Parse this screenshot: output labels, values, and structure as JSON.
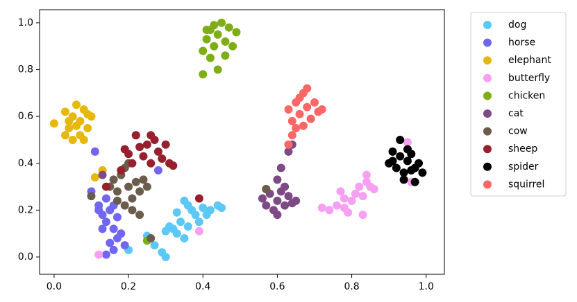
{
  "chart_data": {
    "type": "scatter",
    "xlim": [
      -0.039,
      1.049
    ],
    "ylim": [
      -0.074,
      1.056
    ],
    "xticks": [
      {
        "value": 0,
        "label": "0.0"
      },
      0.2,
      0.4,
      0.6,
      0.8,
      {
        "value": 1,
        "label": "1.0"
      }
    ],
    "yticks": [
      {
        "value": 0,
        "label": "0.0"
      },
      0.2,
      0.4,
      0.6,
      0.8,
      {
        "value": 1,
        "label": "1.0"
      }
    ],
    "legend": "outside-upper-right",
    "series": [
      {
        "name": "dog",
        "color": "#5bc8f5",
        "x": [
          0.32,
          0.33,
          0.35,
          0.3,
          0.31,
          0.34,
          0.36,
          0.37,
          0.38,
          0.4,
          0.42,
          0.44,
          0.45,
          0.33,
          0.36,
          0.25,
          0.27,
          0.29,
          0.3,
          0.2,
          0.35,
          0.39,
          0.41
        ],
        "y": [
          0.12,
          0.1,
          0.08,
          0.11,
          0.13,
          0.15,
          0.22,
          0.2,
          0.18,
          0.21,
          0.2,
          0.22,
          0.21,
          0.19,
          0.13,
          0.09,
          0.05,
          0.02,
          0.0,
          0.03,
          0.24,
          0.15,
          0.18
        ]
      },
      {
        "name": "horse",
        "color": "#7066f0",
        "x": [
          0.1,
          0.12,
          0.13,
          0.14,
          0.15,
          0.16,
          0.17,
          0.15,
          0.14,
          0.13,
          0.18,
          0.19,
          0.16,
          0.11,
          0.12,
          0.17,
          0.14,
          0.16,
          0.28
        ],
        "y": [
          0.28,
          0.22,
          0.18,
          0.15,
          0.2,
          0.12,
          0.08,
          0.06,
          0.25,
          0.12,
          0.1,
          0.05,
          0.03,
          0.45,
          0.2,
          0.17,
          0.01,
          0.22,
          0.37
        ]
      },
      {
        "name": "elephant",
        "color": "#e5b80b",
        "x": [
          0.0,
          0.03,
          0.04,
          0.05,
          0.06,
          0.07,
          0.08,
          0.09,
          0.1,
          0.05,
          0.07,
          0.08,
          0.04,
          0.06,
          0.11,
          0.13,
          0.03,
          0.09
        ],
        "y": [
          0.57,
          0.62,
          0.55,
          0.6,
          0.65,
          0.58,
          0.63,
          0.55,
          0.6,
          0.5,
          0.52,
          0.5,
          0.58,
          0.56,
          0.34,
          0.37,
          0.52,
          0.61
        ]
      },
      {
        "name": "butterfly",
        "color": "#f5a0f0",
        "x": [
          0.72,
          0.74,
          0.76,
          0.77,
          0.78,
          0.79,
          0.8,
          0.81,
          0.82,
          0.83,
          0.84,
          0.85,
          0.86,
          0.84,
          0.83,
          0.95,
          0.96,
          0.39,
          0.12,
          0.78
        ],
        "y": [
          0.21,
          0.2,
          0.22,
          0.28,
          0.25,
          0.19,
          0.24,
          0.27,
          0.3,
          0.26,
          0.32,
          0.3,
          0.29,
          0.35,
          0.18,
          0.49,
          0.32,
          0.11,
          0.01,
          0.21
        ]
      },
      {
        "name": "chicken",
        "color": "#7fad16",
        "x": [
          0.4,
          0.41,
          0.42,
          0.43,
          0.44,
          0.45,
          0.46,
          0.47,
          0.48,
          0.49,
          0.42,
          0.44,
          0.4,
          0.43,
          0.46,
          0.41,
          0.25
        ],
        "y": [
          0.88,
          0.93,
          0.97,
          0.9,
          0.95,
          1.0,
          0.92,
          0.98,
          0.9,
          0.96,
          0.85,
          0.8,
          0.78,
          0.99,
          0.86,
          0.97,
          0.07
        ]
      },
      {
        "name": "cat",
        "color": "#7d4a86",
        "x": [
          0.56,
          0.57,
          0.58,
          0.59,
          0.6,
          0.61,
          0.62,
          0.63,
          0.64,
          0.6,
          0.61,
          0.62,
          0.63,
          0.64,
          0.57,
          0.6,
          0.65,
          0.13
        ],
        "y": [
          0.25,
          0.22,
          0.27,
          0.2,
          0.24,
          0.28,
          0.22,
          0.26,
          0.23,
          0.33,
          0.38,
          0.3,
          0.45,
          0.48,
          0.29,
          0.18,
          0.24,
          0.35
        ]
      },
      {
        "name": "cow",
        "color": "#6b5c4b",
        "x": [
          0.1,
          0.15,
          0.16,
          0.17,
          0.18,
          0.19,
          0.2,
          0.21,
          0.22,
          0.23,
          0.24,
          0.25,
          0.19,
          0.21,
          0.23,
          0.17,
          0.2,
          0.22,
          0.57,
          0.26
        ],
        "y": [
          0.26,
          0.3,
          0.33,
          0.28,
          0.35,
          0.38,
          0.3,
          0.25,
          0.32,
          0.28,
          0.33,
          0.3,
          0.22,
          0.2,
          0.18,
          0.24,
          0.4,
          0.52,
          0.29,
          0.08
        ]
      },
      {
        "name": "sheep",
        "color": "#97202f",
        "x": [
          0.19,
          0.2,
          0.22,
          0.23,
          0.24,
          0.25,
          0.26,
          0.27,
          0.28,
          0.29,
          0.3,
          0.31,
          0.32,
          0.26,
          0.21,
          0.18,
          0.39,
          0.14
        ],
        "y": [
          0.46,
          0.44,
          0.52,
          0.47,
          0.43,
          0.48,
          0.4,
          0.5,
          0.45,
          0.42,
          0.48,
          0.4,
          0.39,
          0.52,
          0.4,
          0.37,
          0.25,
          0.3
        ]
      },
      {
        "name": "spider",
        "color": "#000000",
        "x": [
          0.9,
          0.91,
          0.92,
          0.93,
          0.94,
          0.95,
          0.96,
          0.97,
          0.98,
          0.93,
          0.95,
          0.94,
          0.97,
          0.99,
          0.91,
          0.96
        ],
        "y": [
          0.4,
          0.45,
          0.38,
          0.43,
          0.36,
          0.41,
          0.44,
          0.38,
          0.4,
          0.5,
          0.46,
          0.33,
          0.32,
          0.36,
          0.41,
          0.37
        ]
      },
      {
        "name": "squirrel",
        "color": "#ff6666",
        "x": [
          0.63,
          0.64,
          0.65,
          0.66,
          0.67,
          0.68,
          0.69,
          0.7,
          0.71,
          0.65,
          0.67,
          0.66,
          0.72,
          0.64,
          0.68,
          0.63
        ],
        "y": [
          0.63,
          0.58,
          0.66,
          0.61,
          0.7,
          0.64,
          0.59,
          0.66,
          0.62,
          0.55,
          0.56,
          0.68,
          0.63,
          0.52,
          0.72,
          0.48
        ]
      }
    ]
  }
}
